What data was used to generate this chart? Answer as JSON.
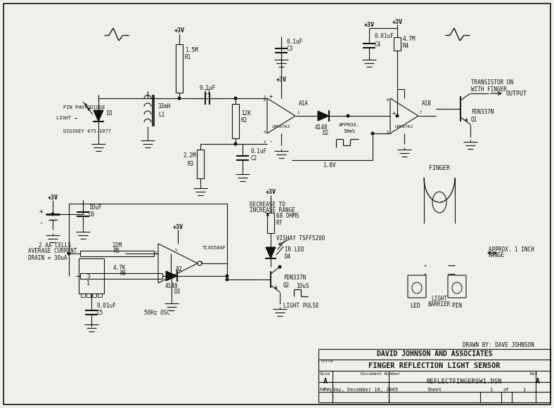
{
  "bg_color": "#f0f0ea",
  "lc": "#111111",
  "title_block": {
    "company": "DAVID JOHNSON AND ASSOCIATES",
    "title": "FINGER REFLECTION LIGHT SENSOR",
    "doc_number": "REFLECTFINGERSW1.DSN",
    "date": "Friday, December 16, 2005",
    "sheet": "1",
    "of": "1",
    "size": "A",
    "rev": "A",
    "drawn_by": "DRAWN BY: DAVE JOHNSON"
  }
}
